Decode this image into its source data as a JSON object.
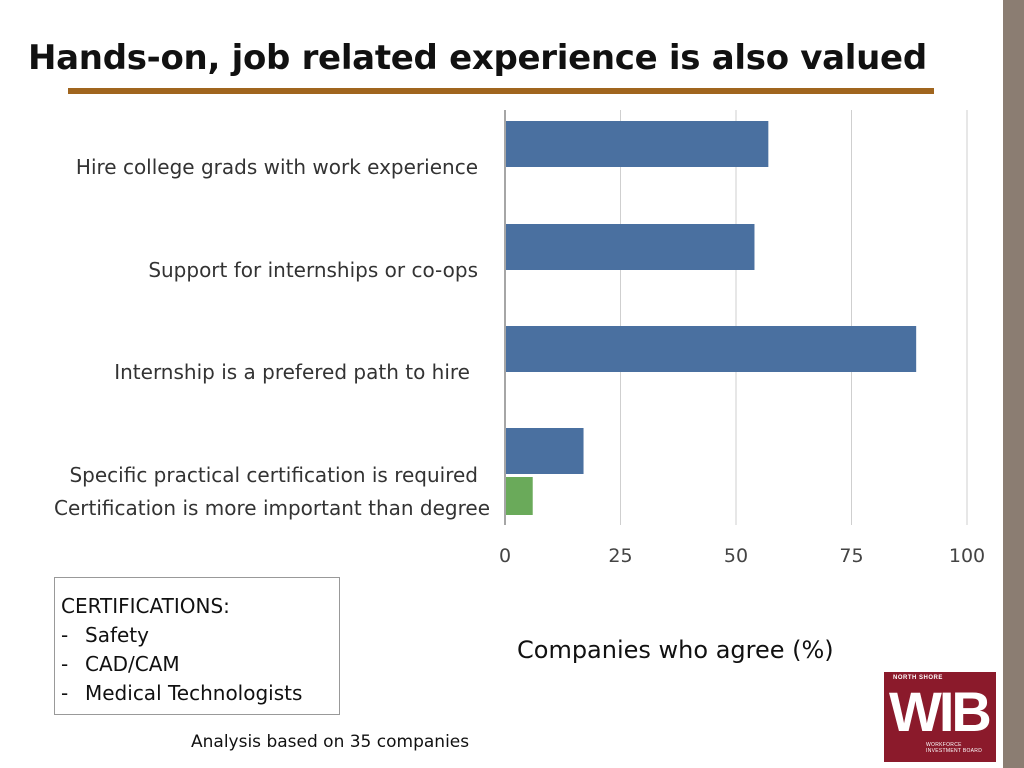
{
  "slide": {
    "title": "Hands-on, job related experience is also valued",
    "axis_caption": "Companies who agree (%)",
    "footnote": "Analysis based on 35 companies"
  },
  "certifications": {
    "heading": "CERTIFICATIONS:",
    "items": [
      "Safety",
      "CAD/CAM",
      "Medical Technologists"
    ]
  },
  "logo": {
    "top_text": "NORTH SHORE",
    "main_text": "WIB",
    "bottom_text": "WORKFORCE INVESTMENT BOARD",
    "color": "#8b1a2b"
  },
  "chart_data": {
    "type": "bar",
    "orientation": "horizontal",
    "categories": [
      "Hire college grads with work experience",
      "Support for internships or co-ops",
      "Internship is a prefered path to hire",
      "Specific practical certification is required",
      "Certification is more important than degree"
    ],
    "values": [
      57,
      54,
      89,
      17,
      6
    ],
    "colors": [
      "#4a70a0",
      "#4a70a0",
      "#4a70a0",
      "#4a70a0",
      "#6aaa5a"
    ],
    "xlim": [
      0,
      100
    ],
    "xticks": [
      0,
      25,
      50,
      75,
      100
    ],
    "grid": true
  }
}
